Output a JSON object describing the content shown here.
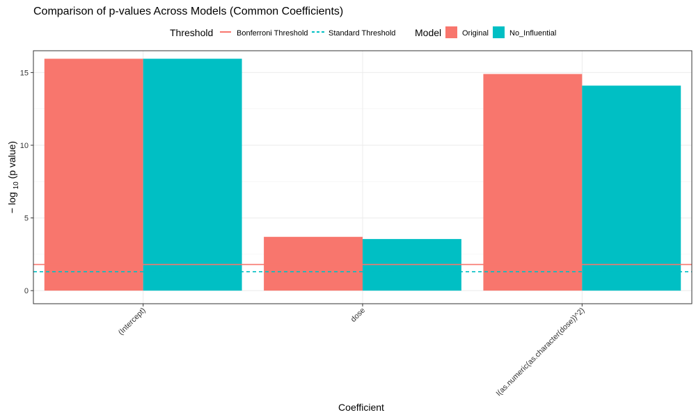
{
  "chart_data": {
    "type": "bar",
    "title": "Comparison of p-values Across Models (Common Coefficients)",
    "xlabel": "Coefficient",
    "ylabel_parts": {
      "minus": "−",
      "log": "log",
      "base": "10",
      "rest": "(p value)"
    },
    "categories": [
      "(Intercept)",
      "dose",
      "I(as.numeric(as.character(dose))^2)"
    ],
    "series": [
      {
        "name": "Original",
        "color": "#F8766D",
        "values": [
          15.95,
          3.7,
          14.9
        ]
      },
      {
        "name": "No_Influential",
        "color": "#00BFC4",
        "values": [
          15.95,
          3.55,
          14.1
        ]
      }
    ],
    "ylim": [
      -0.9,
      16.5
    ],
    "yticks": [
      0,
      5,
      10,
      15
    ],
    "grid": true,
    "thresholds": [
      {
        "name": "Bonferroni Threshold",
        "value": 1.8,
        "color": "#F8766D",
        "linetype": "solid"
      },
      {
        "name": "Standard Threshold",
        "value": 1.3,
        "color": "#00BFC4",
        "linetype": "dashed"
      }
    ],
    "legend": {
      "placement": "top",
      "threshold_title": "Threshold",
      "model_title": "Model"
    }
  }
}
